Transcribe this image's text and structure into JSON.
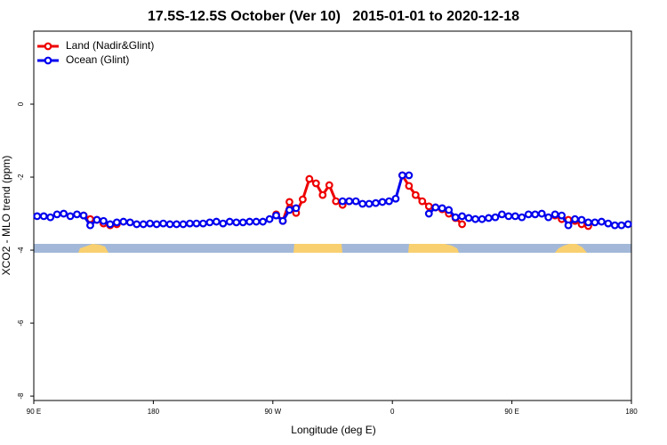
{
  "chart_data": {
    "type": "line",
    "title": "17.5S-12.5S October (Ver 10)   2015-01-01 to 2020-12-18",
    "x_label": "Longitude (deg E)",
    "y_label": "XCO2 - MLO trend (ppm)",
    "xlim": [
      90,
      540
    ],
    "xticks": [
      {
        "value": 90,
        "label": "90 E"
      },
      {
        "value": 180,
        "label": "180"
      },
      {
        "value": 270,
        "label": "90 W"
      },
      {
        "value": 360,
        "label": "0"
      },
      {
        "value": 450,
        "label": "90 E"
      },
      {
        "value": 540,
        "label": "180"
      }
    ],
    "ylim": [
      -8.12,
      2
    ],
    "yticks": [
      -8,
      -6,
      -4,
      -2,
      0
    ],
    "legend": "top-left",
    "x": [
      92.5,
      97.5,
      102.5,
      107.5,
      112.5,
      117.5,
      122.5,
      127.5,
      132.5,
      137.5,
      142.5,
      147.5,
      152.5,
      157.5,
      162.5,
      167.5,
      172.5,
      177.5,
      182.5,
      187.5,
      192.5,
      197.5,
      202.5,
      207.5,
      212.5,
      217.5,
      222.5,
      227.5,
      232.5,
      237.5,
      242.5,
      247.5,
      252.5,
      257.5,
      262.5,
      267.5,
      272.5,
      277.5,
      282.5,
      287.5,
      292.5,
      297.5,
      302.5,
      307.5,
      312.5,
      317.5,
      322.5,
      327.5,
      332.5,
      337.5,
      342.5,
      347.5,
      352.5,
      357.5,
      362.5,
      367.5,
      372.5,
      377.5,
      382.5,
      387.5,
      392.5,
      397.5,
      402.5,
      407.5,
      412.5,
      417.5,
      422.5,
      427.5,
      432.5,
      437.5,
      442.5,
      447.5,
      452.5,
      457.5,
      462.5,
      467.5,
      472.5,
      477.5,
      482.5,
      487.5,
      492.5,
      497.5,
      502.5,
      507.5,
      512.5,
      517.5,
      522.5,
      527.5,
      532.5,
      537.5
    ],
    "series": [
      {
        "name": "Land (Nadir&Glint)",
        "color": "#ee0000",
        "values": [
          null,
          null,
          null,
          null,
          null,
          null,
          null,
          -3.05,
          -3.15,
          -3.17,
          -3.27,
          -3.32,
          -3.29,
          null,
          null,
          null,
          null,
          null,
          null,
          null,
          null,
          null,
          null,
          null,
          null,
          null,
          null,
          null,
          null,
          null,
          null,
          null,
          null,
          null,
          null,
          null,
          -3.02,
          -3.2,
          -2.68,
          -2.98,
          -2.61,
          -2.05,
          -2.17,
          -2.49,
          -2.22,
          -2.66,
          -2.76,
          -2.66,
          null,
          null,
          null,
          null,
          null,
          null,
          null,
          -1.95,
          -2.24,
          -2.49,
          -2.66,
          -2.8,
          -2.83,
          -2.88,
          -3.0,
          -3.12,
          -3.29,
          null,
          null,
          null,
          null,
          null,
          null,
          null,
          null,
          null,
          null,
          null,
          null,
          null,
          -3.05,
          -3.15,
          -3.17,
          -3.2,
          -3.29,
          -3.34,
          null,
          null,
          null,
          null,
          null,
          null
        ]
      },
      {
        "name": "Ocean (Glint)",
        "color": "#0000ee",
        "values": [
          -3.07,
          -3.07,
          -3.1,
          -3.02,
          -3.0,
          -3.07,
          -3.02,
          -3.05,
          -3.32,
          -3.17,
          -3.2,
          -3.29,
          -3.24,
          -3.22,
          -3.24,
          -3.29,
          -3.29,
          -3.27,
          -3.29,
          -3.27,
          -3.29,
          -3.29,
          -3.29,
          -3.27,
          -3.27,
          -3.27,
          -3.24,
          -3.22,
          -3.27,
          -3.22,
          -3.24,
          -3.24,
          -3.22,
          -3.22,
          -3.22,
          -3.15,
          -3.05,
          -3.2,
          -2.9,
          -2.85,
          null,
          null,
          null,
          null,
          null,
          null,
          -2.66,
          -2.66,
          -2.66,
          -2.73,
          -2.73,
          -2.71,
          -2.68,
          -2.66,
          -2.59,
          -1.95,
          -1.95,
          null,
          null,
          -3.0,
          -2.83,
          -2.85,
          -2.9,
          -3.1,
          -3.07,
          -3.12,
          -3.15,
          -3.15,
          -3.12,
          -3.1,
          -3.02,
          -3.07,
          -3.07,
          -3.1,
          -3.02,
          -3.02,
          -3.0,
          -3.1,
          -3.02,
          -3.05,
          -3.32,
          -3.15,
          -3.17,
          -3.24,
          -3.24,
          -3.22,
          -3.27,
          -3.32,
          -3.32,
          -3.29
        ]
      }
    ]
  }
}
